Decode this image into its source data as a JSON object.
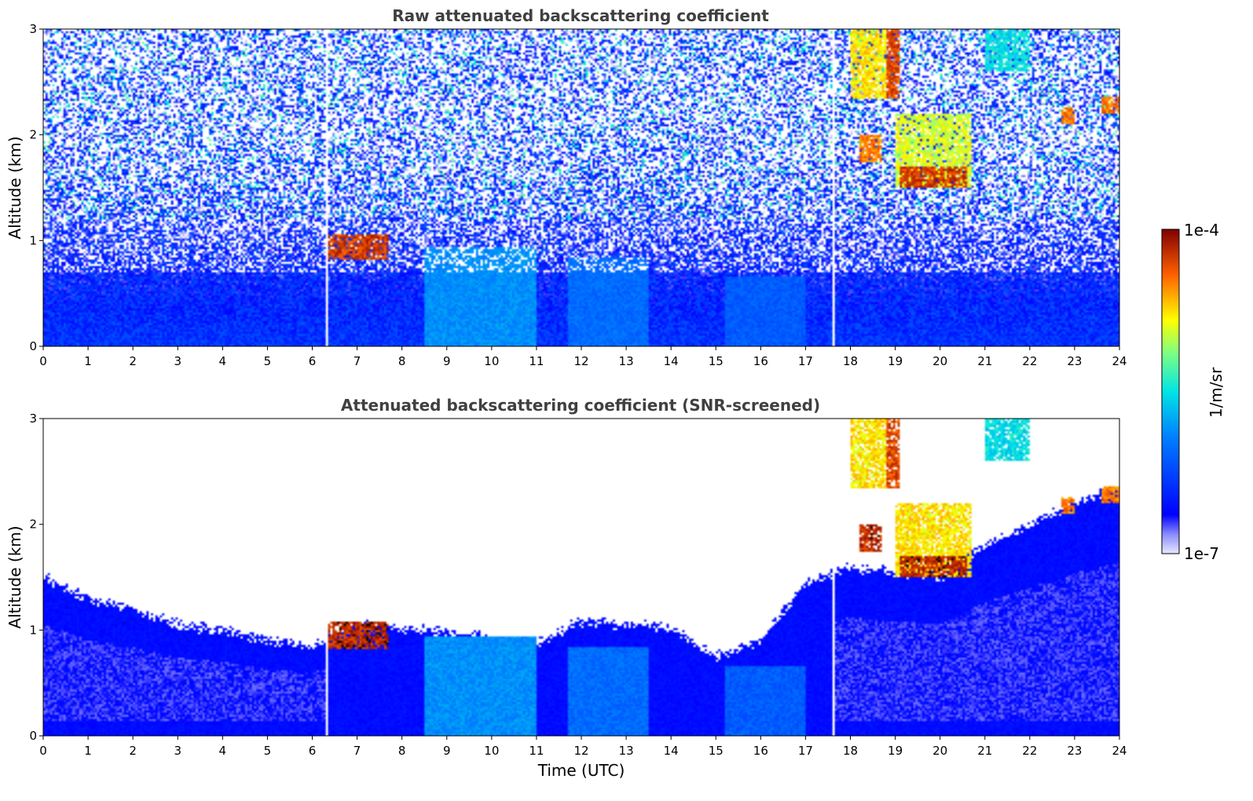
{
  "chart_data": [
    {
      "type": "heatmap",
      "title": "Raw attenuated backscattering coefficient",
      "xlabel": "",
      "ylabel": "Altitude (km)",
      "xlim": [
        0,
        24
      ],
      "ylim": [
        0,
        3
      ],
      "x_ticks": [
        "0",
        "1",
        "2",
        "3",
        "4",
        "5",
        "6",
        "7",
        "8",
        "9",
        "10",
        "11",
        "12",
        "13",
        "14",
        "15",
        "16",
        "17",
        "18",
        "19",
        "20",
        "21",
        "22",
        "23",
        "24"
      ],
      "y_ticks": [
        "0",
        "1",
        "2",
        "3"
      ],
      "noise": "high",
      "features": [
        {
          "kind": "cloud",
          "x0": 6.3,
          "x1": 7.7,
          "y0": 0.82,
          "y1": 1.05,
          "level": 0.97
        },
        {
          "kind": "cloud",
          "x0": 18.0,
          "x1": 18.8,
          "y0": 2.35,
          "y1": 3.0,
          "level": 0.8
        },
        {
          "kind": "cloud",
          "x0": 18.8,
          "x1": 19.1,
          "y0": 2.35,
          "y1": 3.0,
          "level": 0.95
        },
        {
          "kind": "cloud",
          "x0": 18.2,
          "x1": 18.7,
          "y0": 1.75,
          "y1": 2.0,
          "level": 0.9
        },
        {
          "kind": "cloud",
          "x0": 19.0,
          "x1": 20.7,
          "y0": 1.5,
          "y1": 2.2,
          "level": 0.75
        },
        {
          "kind": "cloud",
          "x0": 19.1,
          "x1": 20.6,
          "y0": 1.5,
          "y1": 1.7,
          "level": 0.97
        },
        {
          "kind": "cloud",
          "x0": 21.0,
          "x1": 22.0,
          "y0": 2.6,
          "y1": 3.0,
          "level": 0.55
        },
        {
          "kind": "cloud",
          "x0": 22.7,
          "x1": 23.0,
          "y0": 2.1,
          "y1": 2.25,
          "level": 0.9
        },
        {
          "kind": "cloud",
          "x0": 23.6,
          "x1": 24.0,
          "y0": 2.2,
          "y1": 2.35,
          "level": 0.9
        },
        {
          "kind": "aerosol",
          "x0": 8.5,
          "x1": 11.0,
          "y0": 0.0,
          "y1": 0.95,
          "level": 0.42
        },
        {
          "kind": "aerosol",
          "x0": 11.7,
          "x1": 13.5,
          "y0": 0.0,
          "y1": 0.85,
          "level": 0.36
        },
        {
          "kind": "aerosol",
          "x0": 15.2,
          "x1": 17.0,
          "y0": 0.0,
          "y1": 0.65,
          "level": 0.33
        }
      ]
    },
    {
      "type": "heatmap",
      "title": "Attenuated backscattering coefficient (SNR-screened)",
      "xlabel": "Time (UTC)",
      "ylabel": "Altitude (km)",
      "xlim": [
        0,
        24
      ],
      "ylim": [
        0,
        3
      ],
      "x_ticks": [
        "0",
        "1",
        "2",
        "3",
        "4",
        "5",
        "6",
        "7",
        "8",
        "9",
        "10",
        "11",
        "12",
        "13",
        "14",
        "15",
        "16",
        "17",
        "18",
        "19",
        "20",
        "21",
        "22",
        "23",
        "24"
      ],
      "y_ticks": [
        "0",
        "1",
        "2",
        "3"
      ],
      "noise": "screened",
      "boundary_layer_top_km": [
        [
          0,
          1.5
        ],
        [
          1,
          1.3
        ],
        [
          2,
          1.2
        ],
        [
          3,
          1.05
        ],
        [
          4,
          1.0
        ],
        [
          5,
          0.9
        ],
        [
          6,
          0.85
        ],
        [
          7,
          1.05
        ],
        [
          8,
          1.02
        ],
        [
          9,
          0.98
        ],
        [
          10,
          0.92
        ],
        [
          11,
          0.88
        ],
        [
          12,
          1.08
        ],
        [
          13,
          1.05
        ],
        [
          14,
          1.02
        ],
        [
          15,
          0.75
        ],
        [
          16,
          0.9
        ],
        [
          17,
          1.45
        ],
        [
          18,
          1.6
        ],
        [
          19,
          1.55
        ],
        [
          20,
          1.5
        ],
        [
          21,
          1.8
        ],
        [
          22,
          2.0
        ],
        [
          23,
          2.2
        ],
        [
          24,
          2.35
        ]
      ],
      "features": [
        {
          "kind": "cloud",
          "x0": 6.3,
          "x1": 7.7,
          "y0": 0.82,
          "y1": 1.08,
          "level": 1.0
        },
        {
          "kind": "cloud",
          "x0": 18.0,
          "x1": 18.8,
          "y0": 2.35,
          "y1": 3.0,
          "level": 0.8
        },
        {
          "kind": "cloud",
          "x0": 18.8,
          "x1": 19.1,
          "y0": 2.35,
          "y1": 3.0,
          "level": 0.95
        },
        {
          "kind": "cloud",
          "x0": 18.2,
          "x1": 18.7,
          "y0": 1.75,
          "y1": 2.0,
          "level": 1.0
        },
        {
          "kind": "cloud",
          "x0": 19.0,
          "x1": 20.7,
          "y0": 1.5,
          "y1": 2.2,
          "level": 0.8
        },
        {
          "kind": "cloud",
          "x0": 19.1,
          "x1": 20.6,
          "y0": 1.5,
          "y1": 1.7,
          "level": 1.0
        },
        {
          "kind": "cloud",
          "x0": 21.0,
          "x1": 22.0,
          "y0": 2.6,
          "y1": 3.0,
          "level": 0.55
        },
        {
          "kind": "cloud",
          "x0": 22.7,
          "x1": 23.0,
          "y0": 2.1,
          "y1": 2.25,
          "level": 0.9
        },
        {
          "kind": "cloud",
          "x0": 23.6,
          "x1": 24.0,
          "y0": 2.2,
          "y1": 2.35,
          "level": 0.9
        },
        {
          "kind": "aerosol",
          "x0": 8.5,
          "x1": 11.0,
          "y0": 0.0,
          "y1": 0.95,
          "level": 0.42
        },
        {
          "kind": "aerosol",
          "x0": 11.7,
          "x1": 13.5,
          "y0": 0.0,
          "y1": 0.85,
          "level": 0.36
        },
        {
          "kind": "aerosol",
          "x0": 15.2,
          "x1": 17.0,
          "y0": 0.0,
          "y1": 0.65,
          "level": 0.33
        }
      ]
    }
  ],
  "colorbar": {
    "label": "1/m/sr",
    "max_label": "1e-4",
    "min_label": "1e-7",
    "colormap": "jet",
    "scale": "log"
  },
  "colors": {
    "missing_gap": "#ffffff",
    "frame": "#000000"
  }
}
